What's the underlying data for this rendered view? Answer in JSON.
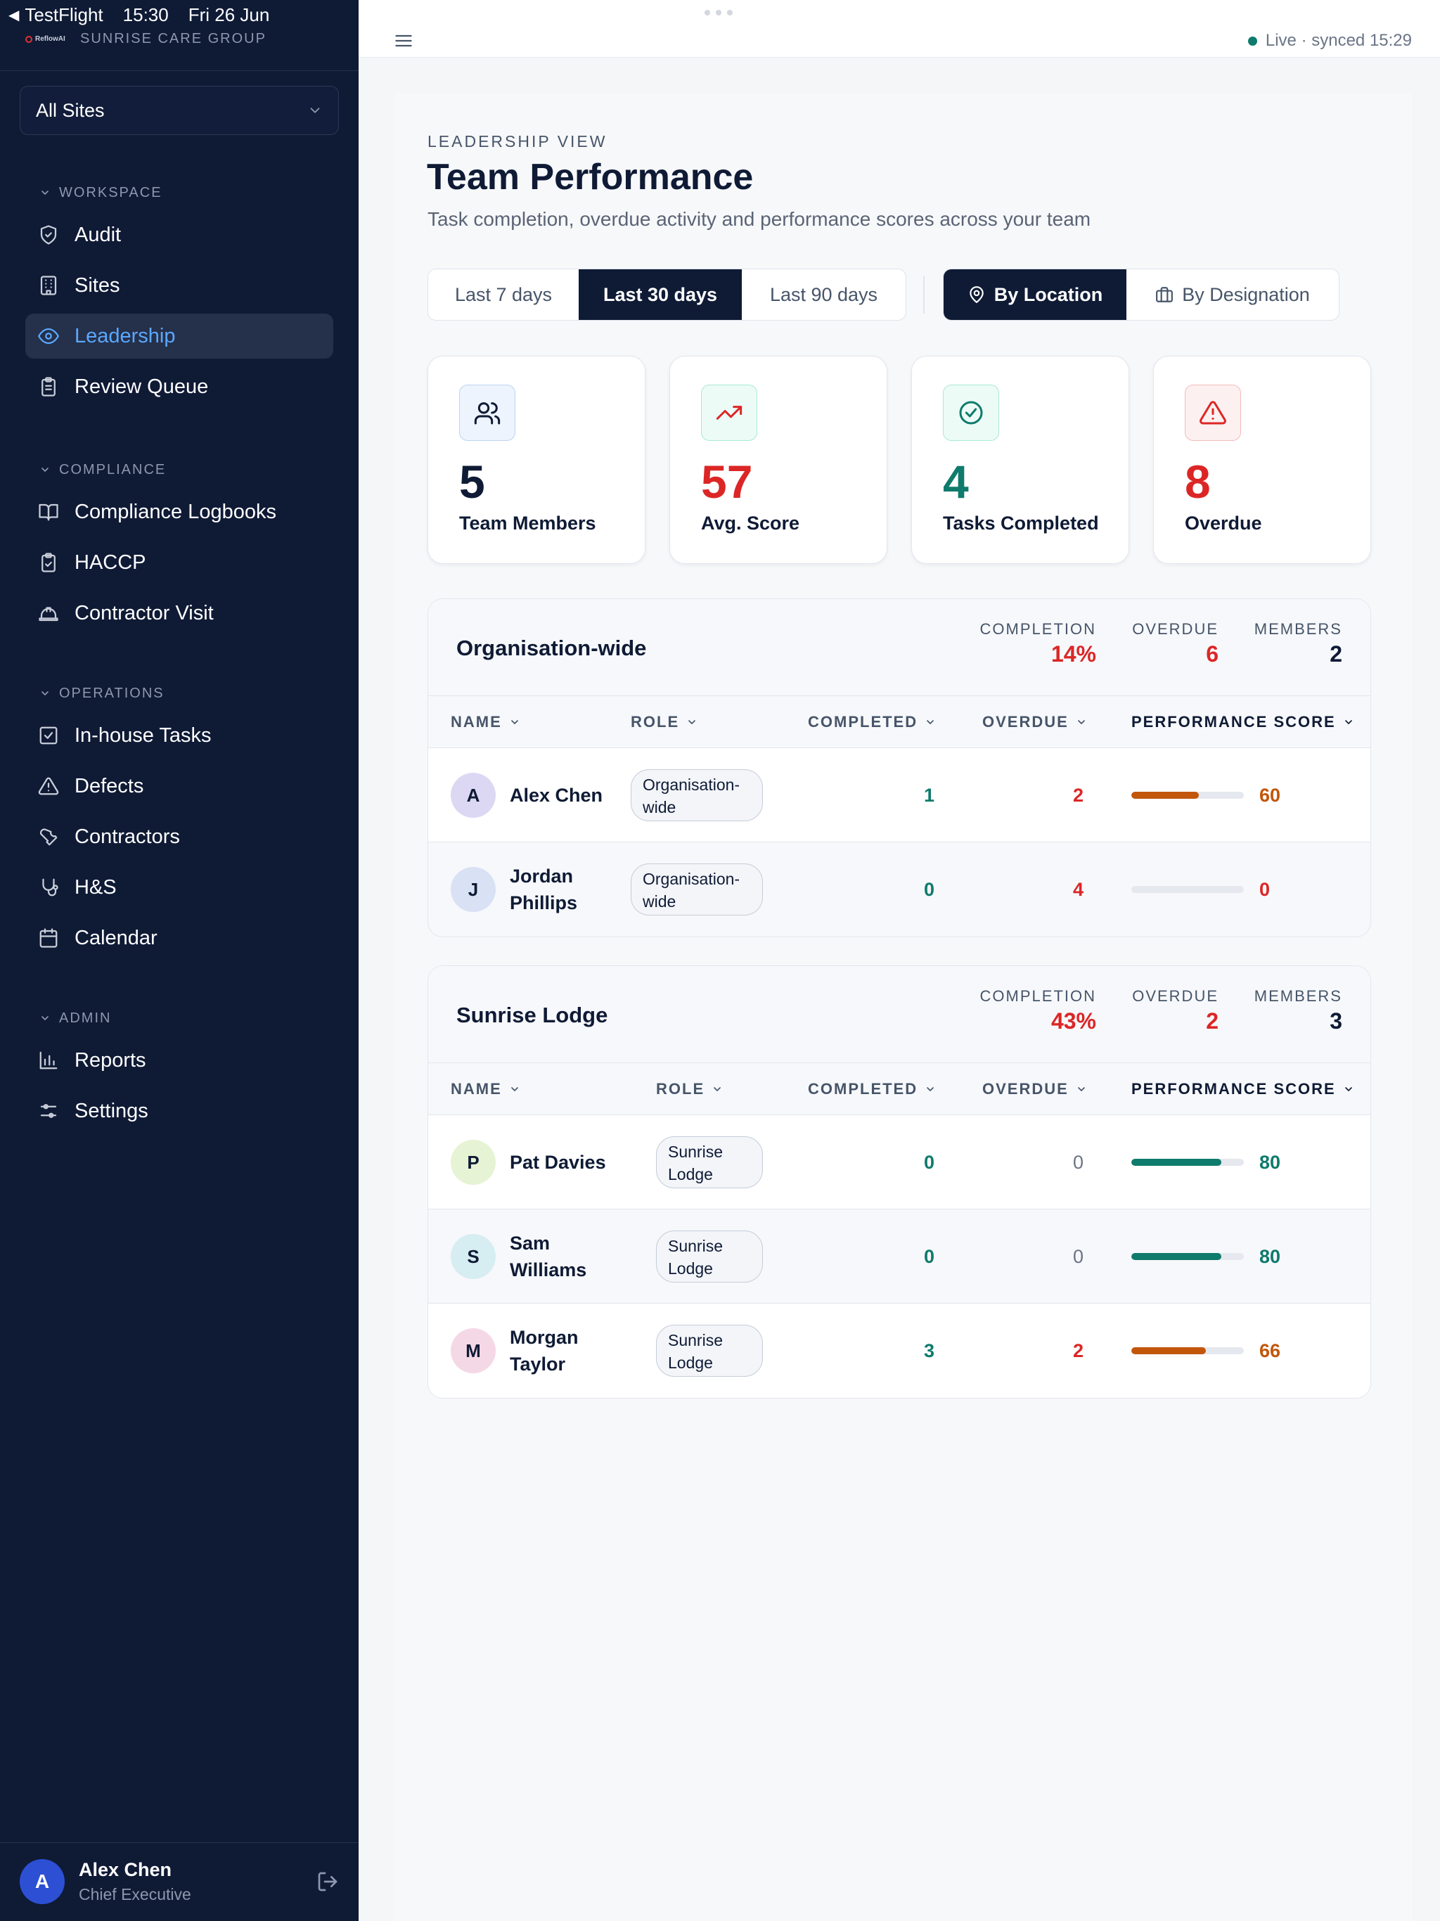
{
  "status_bar": {
    "back_app": "TestFlight",
    "time": "15:30",
    "date": "Fri 26 Jun"
  },
  "brand": {
    "logo_text": "ReflowAI",
    "org_name": "SUNRISE CARE GROUP"
  },
  "site_selector": {
    "value": "All Sites"
  },
  "sidebar": {
    "sections": [
      {
        "title": "WORKSPACE",
        "items": [
          {
            "label": "Audit",
            "icon": "shield-check-icon"
          },
          {
            "label": "Sites",
            "icon": "building-icon"
          },
          {
            "label": "Leadership",
            "icon": "eye-icon",
            "active": true
          },
          {
            "label": "Review Queue",
            "icon": "clipboard-list-icon"
          }
        ]
      },
      {
        "title": "COMPLIANCE",
        "items": [
          {
            "label": "Compliance Logbooks",
            "icon": "book-open-icon"
          },
          {
            "label": "HACCP",
            "icon": "clipboard-check-icon"
          },
          {
            "label": "Contractor Visit",
            "icon": "hard-hat-icon"
          }
        ]
      },
      {
        "title": "OPERATIONS",
        "items": [
          {
            "label": "In-house Tasks",
            "icon": "square-check-icon"
          },
          {
            "label": "Defects",
            "icon": "alert-triangle-icon"
          },
          {
            "label": "Contractors",
            "icon": "wrench-icon"
          },
          {
            "label": "H&S",
            "icon": "stethoscope-icon"
          },
          {
            "label": "Calendar",
            "icon": "calendar-icon"
          }
        ]
      },
      {
        "title": "ADMIN",
        "items": [
          {
            "label": "Reports",
            "icon": "bar-chart-icon"
          },
          {
            "label": "Settings",
            "icon": "sliders-icon"
          }
        ]
      }
    ]
  },
  "user": {
    "initial": "A",
    "name": "Alex Chen",
    "role": "Chief Executive"
  },
  "topbar": {
    "live_status": "Live · synced 15:29"
  },
  "page": {
    "eyebrow": "LEADERSHIP VIEW",
    "title": "Team Performance",
    "subtitle": "Task completion, overdue activity and performance scores across your team"
  },
  "time_range": {
    "options": [
      "Last 7 days",
      "Last 30 days",
      "Last 90 days"
    ],
    "selected": "Last 30 days"
  },
  "group_by": {
    "options": [
      "By Location",
      "By Designation"
    ],
    "selected": "By Location"
  },
  "stats": [
    {
      "value": "5",
      "label": "Team Members",
      "icon": "users-icon",
      "color": "#0f1b35"
    },
    {
      "value": "57",
      "label": "Avg. Score",
      "icon": "trending-up-icon",
      "color": "#dc2626"
    },
    {
      "value": "4",
      "label": "Tasks Completed",
      "icon": "check-circle-icon",
      "color": "#0f7b6c"
    },
    {
      "value": "8",
      "label": "Overdue",
      "icon": "alert-triangle-icon",
      "color": "#dc2626"
    }
  ],
  "columns": {
    "name": "NAME",
    "role": "ROLE",
    "completed": "COMPLETED",
    "overdue": "OVERDUE",
    "score": "PERFORMANCE SCORE"
  },
  "metric_labels": {
    "completion": "COMPLETION",
    "overdue": "OVERDUE",
    "members": "MEMBERS"
  },
  "groups": [
    {
      "name": "Organisation-wide",
      "completion": "14%",
      "overdue": "6",
      "members": "2",
      "rows": [
        {
          "initial": "A",
          "name": "Alex Chen",
          "role": "Organisation-wide",
          "completed": "1",
          "overdue": "2",
          "score": 60,
          "score_text": "60",
          "avatar_color": "#dcd8f3",
          "score_color": "#c2570c"
        },
        {
          "initial": "J",
          "name": "Jordan Phillips",
          "role": "Organisation-wide",
          "completed": "0",
          "overdue": "4",
          "score": 0,
          "score_text": "0",
          "avatar_color": "#d9e1f5",
          "score_color": "#dc2626"
        }
      ]
    },
    {
      "name": "Sunrise Lodge",
      "completion": "43%",
      "overdue": "2",
      "members": "3",
      "rows": [
        {
          "initial": "P",
          "name": "Pat Davies",
          "role": "Sunrise Lodge",
          "completed": "0",
          "overdue": "0",
          "score": 80,
          "score_text": "80",
          "avatar_color": "#e6f3d4",
          "score_color": "#0f7b6c"
        },
        {
          "initial": "S",
          "name": "Sam Williams",
          "role": "Sunrise Lodge",
          "completed": "0",
          "overdue": "0",
          "score": 80,
          "score_text": "80",
          "avatar_color": "#d6edf2",
          "score_color": "#0f7b6c"
        },
        {
          "initial": "M",
          "name": "Morgan Taylor",
          "role": "Sunrise Lodge",
          "completed": "3",
          "overdue": "2",
          "score": 66,
          "score_text": "66",
          "avatar_color": "#f5d8e6",
          "score_color": "#c2570c"
        }
      ]
    }
  ]
}
